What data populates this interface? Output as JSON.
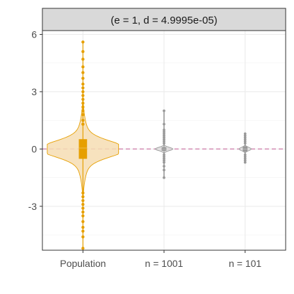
{
  "chart_data": {
    "type": "violin",
    "facet_label": "(e = 1, d = 4.9995e-05)",
    "categories": [
      "Population",
      "n = 1001",
      "n = 101"
    ],
    "y_ticks": [
      -3,
      0,
      3,
      6
    ],
    "ylim": [
      -5.3,
      6.2
    ],
    "reference_line_y": 0,
    "grid": true,
    "series": [
      {
        "category": "Population",
        "color": "#E69F00",
        "fill": "#F6DDB3",
        "violin_halfwidth": 0.88,
        "q1": -0.5,
        "median": 0.05,
        "q3": 0.5,
        "outliers_high": [
          1.3,
          1.5,
          1.8,
          2.0,
          2.2,
          2.4,
          2.6,
          2.8,
          3.0,
          3.2,
          3.4,
          3.7,
          4.0,
          4.3,
          4.7,
          5.1,
          5.6
        ],
        "outliers_low": [
          -2.3,
          -2.5,
          -2.7,
          -2.9,
          -3.1,
          -3.3,
          -3.5,
          -3.8,
          -4.1,
          -4.3,
          -4.6,
          -5.2
        ]
      },
      {
        "category": "n = 1001",
        "color": "#999999",
        "fill": "#DDDDDD",
        "violin_halfwidth": 0.22,
        "q1": -0.08,
        "median": 0.0,
        "q3": 0.08,
        "outliers_high": [
          0.3,
          0.4,
          0.5,
          0.6,
          0.7,
          0.8,
          0.9,
          1.0,
          1.3,
          2.0
        ],
        "outliers_low": [
          -0.3,
          -0.4,
          -0.5,
          -0.6,
          -0.7,
          -0.9,
          -1.1,
          -1.5
        ]
      },
      {
        "category": "n = 101",
        "color": "#999999",
        "fill": "#DDDDDD",
        "violin_halfwidth": 0.15,
        "q1": -0.12,
        "median": 0.0,
        "q3": 0.12,
        "outliers_high": [
          0.3,
          0.4,
          0.5,
          0.6,
          0.7,
          0.8
        ],
        "outliers_low": [
          -0.3,
          -0.4,
          -0.5,
          -0.6,
          -0.7
        ]
      }
    ],
    "reference_line_color": "#CC79A7"
  }
}
